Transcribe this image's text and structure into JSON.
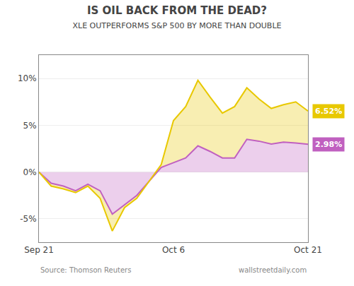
{
  "chart_data": {
    "type": "area",
    "title": "IS OIL BACK FROM THE DEAD?",
    "subtitle": "XLE OUTPERFORMS S&P 500 BY MORE THAN DOUBLE",
    "categories": [
      "Sep 21",
      null,
      null,
      null,
      null,
      null,
      null,
      null,
      null,
      null,
      null,
      "Oct 6",
      null,
      null,
      null,
      null,
      null,
      null,
      null,
      null,
      null,
      null,
      "Oct 21"
    ],
    "series": [
      {
        "color": "#e8c800",
        "values": [
          0.0,
          -1.5,
          -1.8,
          -2.2,
          -1.5,
          -2.8,
          -6.3,
          -3.8,
          -2.8,
          -1.0,
          0.8,
          5.5,
          7.0,
          9.8,
          8.0,
          6.3,
          7.0,
          9.0,
          7.8,
          6.8,
          7.2,
          7.5,
          6.52
        ],
        "value_labels": [
          null,
          null,
          null,
          null,
          null,
          null,
          null,
          null,
          null,
          null,
          null,
          null,
          null,
          null,
          null,
          null,
          null,
          null,
          null,
          null,
          null,
          null,
          "6.52%"
        ]
      },
      {
        "color": "#c060c0",
        "values": [
          0.0,
          -1.2,
          -1.5,
          -2.0,
          -1.3,
          -2.0,
          -4.5,
          -3.5,
          -2.5,
          -1.0,
          0.5,
          1.0,
          1.5,
          2.8,
          2.2,
          1.5,
          1.5,
          3.5,
          3.3,
          3.0,
          3.2,
          3.1,
          2.98
        ],
        "value_labels": [
          null,
          null,
          null,
          null,
          null,
          null,
          null,
          null,
          null,
          null,
          null,
          null,
          null,
          null,
          null,
          null,
          null,
          null,
          null,
          null,
          null,
          null,
          "2.98%"
        ]
      }
    ],
    "ylim": [
      -7.5,
      12.5
    ],
    "yticks": [
      {
        "value": -5,
        "label": "-5%"
      },
      {
        "value": 0,
        "label": "0%"
      },
      {
        "value": 5,
        "label": "5%"
      },
      {
        "value": 10,
        "label": "10%"
      }
    ],
    "grid": "y",
    "annotations": [
      "Source: Thomson Reuters",
      "wallstreetdaily.com"
    ]
  }
}
